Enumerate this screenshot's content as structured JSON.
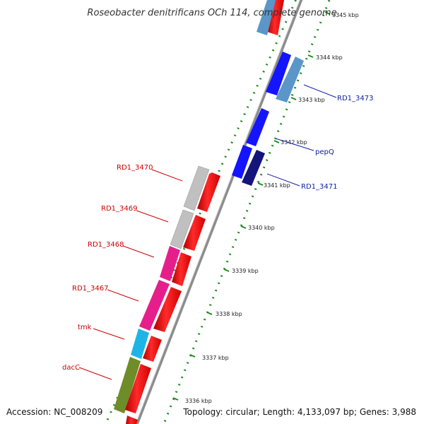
{
  "title": "Roseobacter denitrificans OCh 114, complete genome",
  "accession": "Accession: NC_008209",
  "summary": "Topology: circular; Length: 4,133,097 bp; Genes: 3,988",
  "ticks": [
    "3336 kbp",
    "3337 kbp",
    "3338 kbp",
    "3339 kbp",
    "3340 kbp",
    "3341 kbp",
    "3342 kbp",
    "3343 kbp",
    "3344 kbp",
    "3345 kbp"
  ],
  "genes_left": [
    "RD1_3470",
    "RD1_3469",
    "RD1_3468",
    "RD1_3467",
    "tmk",
    "dacC"
  ],
  "genes_right": [
    "RD1_3473",
    "pepQ",
    "RD1_3471"
  ],
  "colors": {
    "backbone": "#8c8c8c",
    "cds": "#ff0000",
    "gray_gene": "#c0c0c0",
    "pink_gene": "#e61e8c",
    "cyan_gene": "#1eb4e6",
    "olive_gene": "#6e8c28",
    "blue_gene": "#1414ff",
    "steel_gene": "#5a96c8",
    "navy_gene": "#14147a",
    "dots": "#1e8c1e",
    "label_red": "#cc0000",
    "label_blue": "#1020a0"
  }
}
